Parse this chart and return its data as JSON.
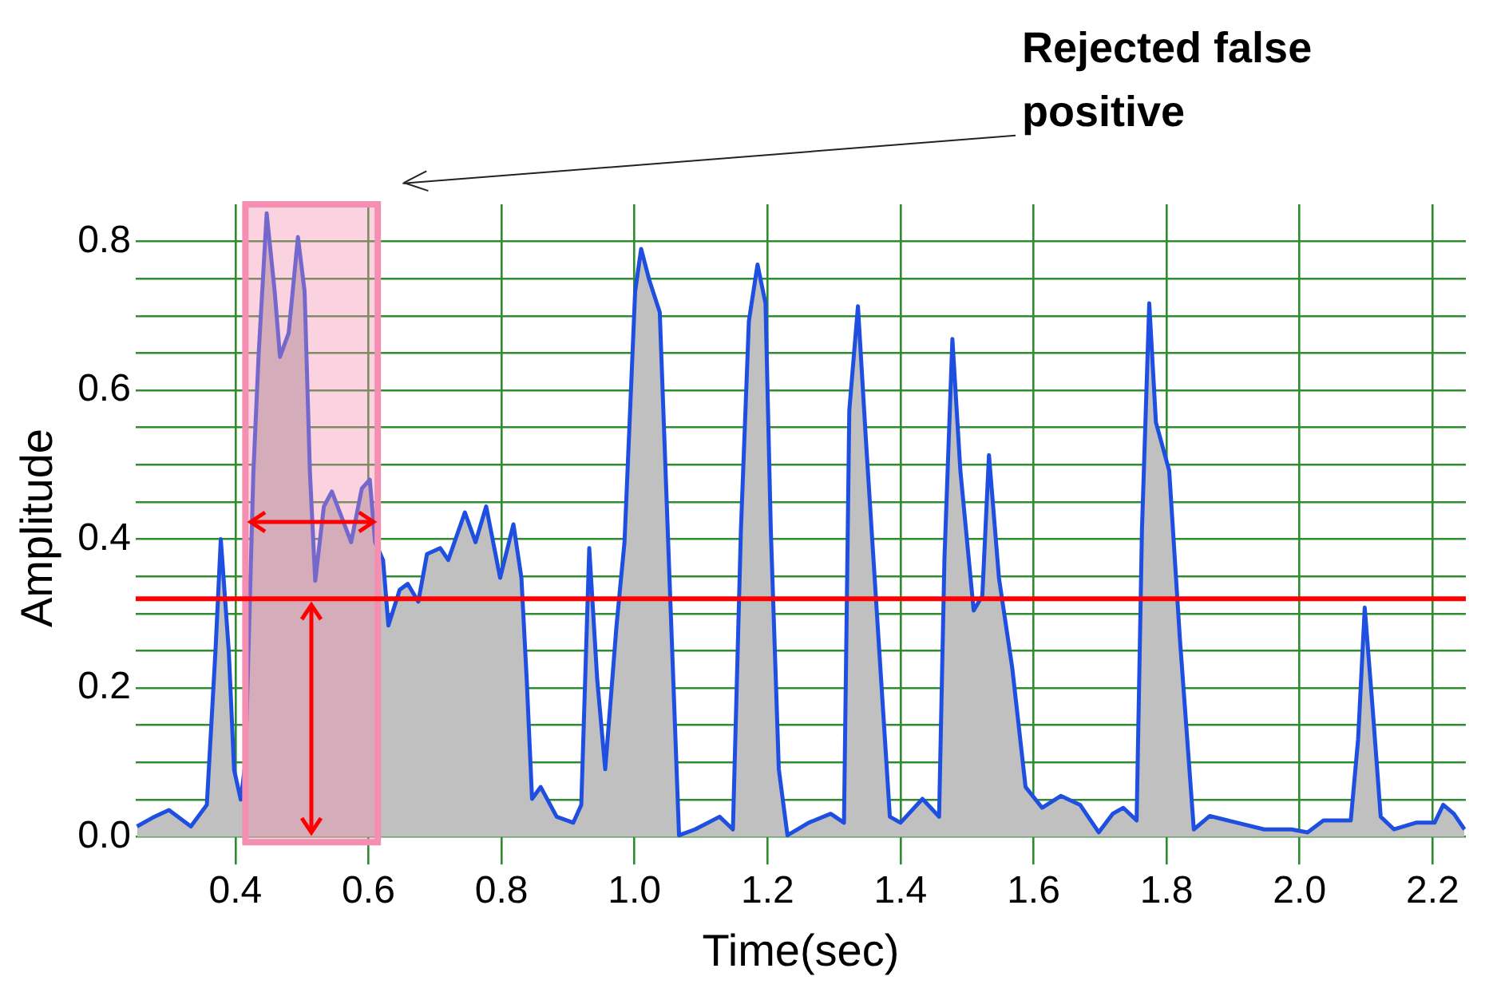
{
  "chart_data": {
    "type": "area",
    "xlabel": "Time(sec)",
    "ylabel": "Amplitude",
    "annotations": [
      "Rejected false positive"
    ],
    "xlim": [
      0.25,
      2.25
    ],
    "ylim": [
      -0.02,
      0.85
    ],
    "xticks": [
      0.4,
      0.6,
      0.8,
      {
        "value": 1.0,
        "label": "1.0"
      },
      1.2,
      1.4,
      1.6,
      1.8,
      {
        "value": 2.0,
        "label": "2.0"
      },
      2.2
    ],
    "yticks": [
      {
        "value": 0,
        "label": "0.0"
      },
      {
        "value": 0.05,
        "label": null
      },
      {
        "value": 0.1,
        "label": null
      },
      {
        "value": 0.15,
        "label": null
      },
      {
        "value": 0.2,
        "label": "0.2"
      },
      {
        "value": 0.25,
        "label": null
      },
      {
        "value": 0.3,
        "label": null
      },
      {
        "value": 0.35,
        "label": null
      },
      {
        "value": 0.4,
        "label": "0.4"
      },
      {
        "value": 0.45,
        "label": null
      },
      {
        "value": 0.5,
        "label": null
      },
      {
        "value": 0.55,
        "label": null
      },
      {
        "value": 0.6,
        "label": "0.6"
      },
      {
        "value": 0.65,
        "label": null
      },
      {
        "value": 0.7,
        "label": null
      },
      {
        "value": 0.75,
        "label": null
      },
      {
        "value": 0.8,
        "label": "0.8"
      }
    ],
    "grid": true,
    "legend": false,
    "ref_lines": [
      {
        "axis": "y",
        "value": 0.32,
        "color": "#ff0000"
      }
    ],
    "bands": [
      {
        "axis": "x",
        "from": 0.415,
        "to": 0.614,
        "color": "#f48fb1"
      }
    ],
    "series": [
      {
        "color": "#1f4fe0",
        "x": [
          0.252,
          0.276,
          0.3,
          0.333,
          0.357,
          0.37,
          0.378,
          0.39,
          0.398,
          0.408,
          0.415,
          0.427,
          0.435,
          0.447,
          0.459,
          0.467,
          0.48,
          0.494,
          0.504,
          0.512,
          0.52,
          0.533,
          0.545,
          0.557,
          0.574,
          0.59,
          0.602,
          0.61,
          0.622,
          0.63,
          0.647,
          0.659,
          0.675,
          0.688,
          0.708,
          0.72,
          0.745,
          0.761,
          0.777,
          0.798,
          0.818,
          0.83,
          0.838,
          0.846,
          0.859,
          0.883,
          0.908,
          0.92,
          0.932,
          0.944,
          0.956,
          0.973,
          0.985,
          1.001,
          1.01,
          1.022,
          1.038,
          1.05,
          1.067,
          1.091,
          1.128,
          1.148,
          1.16,
          1.172,
          1.185,
          1.197,
          1.205,
          1.217,
          1.23,
          1.262,
          1.295,
          1.315,
          1.323,
          1.336,
          1.348,
          1.368,
          1.384,
          1.4,
          1.433,
          1.458,
          1.466,
          1.478,
          1.49,
          1.51,
          1.523,
          1.533,
          1.548,
          1.568,
          1.588,
          1.613,
          1.641,
          1.67,
          1.698,
          1.719,
          1.735,
          1.755,
          1.763,
          1.774,
          1.784,
          1.804,
          1.82,
          1.841,
          1.865,
          1.906,
          1.947,
          1.988,
          2.012,
          2.036,
          2.077,
          2.088,
          2.098,
          2.11,
          2.122,
          2.142,
          2.175,
          2.203,
          2.216,
          2.232,
          2.248
        ],
        "values": [
          0.014,
          0.026,
          0.036,
          0.014,
          0.043,
          0.25,
          0.4,
          0.25,
          0.09,
          0.05,
          0.1,
          0.49,
          0.65,
          0.838,
          0.733,
          0.645,
          0.677,
          0.806,
          0.733,
          0.49,
          0.344,
          0.444,
          0.464,
          0.436,
          0.396,
          0.468,
          0.48,
          0.396,
          0.372,
          0.284,
          0.332,
          0.34,
          0.316,
          0.38,
          0.388,
          0.372,
          0.436,
          0.396,
          0.444,
          0.348,
          0.42,
          0.348,
          0.211,
          0.051,
          0.067,
          0.027,
          0.019,
          0.043,
          0.388,
          0.211,
          0.091,
          0.284,
          0.396,
          0.733,
          0.79,
          0.749,
          0.705,
          0.412,
          0.002,
          0.01,
          0.027,
          0.01,
          0.412,
          0.693,
          0.769,
          0.717,
          0.412,
          0.091,
          0.002,
          0.019,
          0.031,
          0.019,
          0.573,
          0.713,
          0.533,
          0.251,
          0.027,
          0.019,
          0.051,
          0.027,
          0.372,
          0.669,
          0.492,
          0.304,
          0.324,
          0.513,
          0.348,
          0.227,
          0.067,
          0.039,
          0.055,
          0.043,
          0.006,
          0.031,
          0.039,
          0.022,
          0.412,
          0.717,
          0.557,
          0.492,
          0.267,
          0.01,
          0.028,
          0.019,
          0.01,
          0.01,
          0.006,
          0.022,
          0.022,
          0.131,
          0.308,
          0.171,
          0.027,
          0.01,
          0.019,
          0.019,
          0.043,
          0.031,
          0.01
        ]
      }
    ]
  }
}
